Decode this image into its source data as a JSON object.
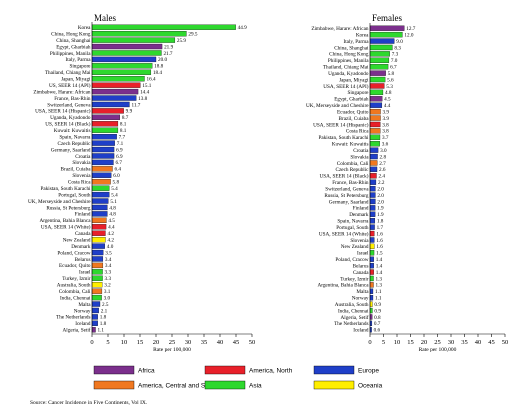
{
  "colors": {
    "Africa": "#7b2f8c",
    "America, North": "#e8202a",
    "Europe": "#1f3fc8",
    "America, Central and South": "#f07820",
    "Asia": "#2ed82e",
    "Oceania": "#ffee00"
  },
  "legend": [
    {
      "name": "Africa"
    },
    {
      "name": "America, North"
    },
    {
      "name": "Europe"
    },
    {
      "name": "America, Central and South"
    },
    {
      "name": "Asia"
    },
    {
      "name": "Oceania"
    }
  ],
  "source": "Source: Cancer Incidence in Five Continents, Vol IX.",
  "chart_data": [
    {
      "type": "bar",
      "title": "Males",
      "xlabel": "Rate per 100,000",
      "xlim": [
        0,
        50
      ],
      "xticks": [
        "0",
        "5",
        "10",
        "15",
        "20",
        "25",
        "30",
        "35",
        "40",
        "45",
        "50"
      ],
      "bars": [
        {
          "label": "Korea",
          "value": 44.9,
          "region": "Asia"
        },
        {
          "label": "China, Hong Kong",
          "value": 29.5,
          "region": "Asia"
        },
        {
          "label": "China, Shanghai",
          "value": 25.9,
          "region": "Asia"
        },
        {
          "label": "Egypt, Gharbiah",
          "value": 21.9,
          "region": "Africa"
        },
        {
          "label": "Philippines, Manila",
          "value": 21.7,
          "region": "Asia"
        },
        {
          "label": "Italy, Parma",
          "value": 20.0,
          "region": "Europe"
        },
        {
          "label": "Singapore",
          "value": 18.8,
          "region": "Asia"
        },
        {
          "label": "Thailand, Chiang Mai",
          "value": 18.4,
          "region": "Asia"
        },
        {
          "label": "Japan, Miyagi",
          "value": 16.4,
          "region": "Asia"
        },
        {
          "label": "US, SEER 14 (API)",
          "value": 15.1,
          "region": "America, North"
        },
        {
          "label": "Zimbabwe, Harare: African",
          "value": 14.4,
          "region": "Africa"
        },
        {
          "label": "France, Bas-Rhin",
          "value": 13.8,
          "region": "Europe"
        },
        {
          "label": "Switzerland, Geneva",
          "value": 11.7,
          "region": "Europe"
        },
        {
          "label": "USA, SEER 14 (Hispanic)",
          "value": 9.9,
          "region": "America, North"
        },
        {
          "label": "Uganda, Kyadondo",
          "value": 8.7,
          "region": "Africa"
        },
        {
          "label": "US, SEER 14 (Black)",
          "value": 8.1,
          "region": "America, North"
        },
        {
          "label": "Kuwait: Kuwaitis",
          "value": 8.1,
          "region": "Asia"
        },
        {
          "label": "Spain, Navarra",
          "value": 7.7,
          "region": "Europe"
        },
        {
          "label": "Czech Republic",
          "value": 7.1,
          "region": "Europe"
        },
        {
          "label": "Germany, Saarland",
          "value": 6.9,
          "region": "Europe"
        },
        {
          "label": "Croatia",
          "value": 6.9,
          "region": "Europe"
        },
        {
          "label": "Slovakia",
          "value": 6.7,
          "region": "Europe"
        },
        {
          "label": "Brazil, Cuiaba",
          "value": 6.4,
          "region": "America, Central and South"
        },
        {
          "label": "Slovenia",
          "value": 6.0,
          "region": "Europe"
        },
        {
          "label": "Costa Rica",
          "value": 5.8,
          "region": "America, Central and South"
        },
        {
          "label": "Pakistan, South Karachi",
          "value": 5.4,
          "region": "Asia"
        },
        {
          "label": "Portugal, South",
          "value": 5.4,
          "region": "Europe"
        },
        {
          "label": "UK, Merseyside and Cheshire",
          "value": 5.1,
          "region": "Europe"
        },
        {
          "label": "Russia, St Petersburg",
          "value": 4.8,
          "region": "Europe"
        },
        {
          "label": "Finland",
          "value": 4.8,
          "region": "Europe"
        },
        {
          "label": "Argentina, Bahia Blanca",
          "value": 4.5,
          "region": "America, Central and South"
        },
        {
          "label": "USA, SEER 14 (White)",
          "value": 4.4,
          "region": "America, North"
        },
        {
          "label": "Canada",
          "value": 4.2,
          "region": "America, North"
        },
        {
          "label": "New Zealand",
          "value": 4.2,
          "region": "Oceania"
        },
        {
          "label": "Denmark",
          "value": 4.0,
          "region": "Europe"
        },
        {
          "label": "Poland, Cracow",
          "value": 3.5,
          "region": "Europe"
        },
        {
          "label": "Belarus",
          "value": 3.4,
          "region": "Europe"
        },
        {
          "label": "Ecuador, Quito",
          "value": 3.4,
          "region": "America, Central and South"
        },
        {
          "label": "Israel",
          "value": 3.3,
          "region": "Asia"
        },
        {
          "label": "Turkey, Izmir",
          "value": 3.3,
          "region": "Asia"
        },
        {
          "label": "Australia, South",
          "value": 3.2,
          "region": "Oceania"
        },
        {
          "label": "Colombia, Cali",
          "value": 3.1,
          "region": "America, Central and South"
        },
        {
          "label": "India, Chennai",
          "value": 3.0,
          "region": "Asia"
        },
        {
          "label": "Malta",
          "value": 2.5,
          "region": "Europe"
        },
        {
          "label": "Norway",
          "value": 2.1,
          "region": "Europe"
        },
        {
          "label": "The Netherlands",
          "value": 1.8,
          "region": "Europe"
        },
        {
          "label": "Iceland",
          "value": 1.8,
          "region": "Europe"
        },
        {
          "label": "Algeria, Setif",
          "value": 1.1,
          "region": "Africa"
        }
      ]
    },
    {
      "type": "bar",
      "title": "Females",
      "xlabel": "Rate per 100,000",
      "xlim": [
        0,
        50
      ],
      "xticks": [
        "0",
        "5",
        "10",
        "15",
        "20",
        "25",
        "30",
        "35",
        "40",
        "45",
        "50"
      ],
      "bars": [
        {
          "label": "Zimbabwe, Harare: African",
          "value": 12.7,
          "region": "Africa"
        },
        {
          "label": "Korea",
          "value": 12.0,
          "region": "Asia"
        },
        {
          "label": "Italy, Parma",
          "value": 9.0,
          "region": "Europe"
        },
        {
          "label": "China, Shanghai",
          "value": 8.3,
          "region": "Asia"
        },
        {
          "label": "China, Hong Kong",
          "value": 7.3,
          "region": "Asia"
        },
        {
          "label": "Philippines, Manila",
          "value": 7.0,
          "region": "Asia"
        },
        {
          "label": "Thailand, Chiang Mai",
          "value": 6.7,
          "region": "Asia"
        },
        {
          "label": "Uganda, Kyadondo",
          "value": 5.8,
          "region": "Africa"
        },
        {
          "label": "Japan, Miyagi",
          "value": 5.6,
          "region": "Asia"
        },
        {
          "label": "USA, SEER 14 (API)",
          "value": 5.3,
          "region": "America, North"
        },
        {
          "label": "Singapore",
          "value": 4.8,
          "region": "Asia"
        },
        {
          "label": "Egypt, Gharbiah",
          "value": 4.5,
          "region": "Africa"
        },
        {
          "label": "UK, Merseyside and Cheshire",
          "value": 4.4,
          "region": "Europe"
        },
        {
          "label": "Ecuador, Quito",
          "value": 3.9,
          "region": "America, Central and South"
        },
        {
          "label": "Brazil, Cuiaba",
          "value": 3.9,
          "region": "America, Central and South"
        },
        {
          "label": "USA, SEER 14 (Hispanic)",
          "value": 3.8,
          "region": "America, North"
        },
        {
          "label": "Costa Rica",
          "value": 3.8,
          "region": "America, Central and South"
        },
        {
          "label": "Pakistan, South Karachi",
          "value": 3.7,
          "region": "Asia"
        },
        {
          "label": "Kuwait: Kuwaitis",
          "value": 3.6,
          "region": "Asia"
        },
        {
          "label": "Croatia",
          "value": 3.0,
          "region": "Europe"
        },
        {
          "label": "Slovakia",
          "value": 2.8,
          "region": "Europe"
        },
        {
          "label": "Colombia, Cali",
          "value": 2.7,
          "region": "America, Central and South"
        },
        {
          "label": "Czech Republic",
          "value": 2.6,
          "region": "Europe"
        },
        {
          "label": "USA, SEER 14 (Black)",
          "value": 2.4,
          "region": "America, North"
        },
        {
          "label": "France, Bas-Rhin",
          "value": 2.2,
          "region": "Europe"
        },
        {
          "label": "Switzerland, Geneva",
          "value": 2.0,
          "region": "Europe"
        },
        {
          "label": "Russia, St Petersburg",
          "value": 2.0,
          "region": "Europe"
        },
        {
          "label": "Germany, Saarland",
          "value": 2.0,
          "region": "Europe"
        },
        {
          "label": "Finland",
          "value": 1.9,
          "region": "Europe"
        },
        {
          "label": "Denmark",
          "value": 1.9,
          "region": "Europe"
        },
        {
          "label": "Spain, Navarra",
          "value": 1.8,
          "region": "Europe"
        },
        {
          "label": "Portugal, South",
          "value": 1.7,
          "region": "Europe"
        },
        {
          "label": "USA, SEER 14 (White)",
          "value": 1.6,
          "region": "America, North"
        },
        {
          "label": "Slovenia",
          "value": 1.6,
          "region": "Europe"
        },
        {
          "label": "New Zealand",
          "value": 1.6,
          "region": "Oceania"
        },
        {
          "label": "Israel",
          "value": 1.5,
          "region": "Asia"
        },
        {
          "label": "Poland, Cracow",
          "value": 1.4,
          "region": "Europe"
        },
        {
          "label": "Belarus",
          "value": 1.4,
          "region": "Europe"
        },
        {
          "label": "Canada",
          "value": 1.4,
          "region": "America, North"
        },
        {
          "label": "Turkey, Izmir",
          "value": 1.3,
          "region": "Asia"
        },
        {
          "label": "Argentina, Bahia Blanca",
          "value": 1.3,
          "region": "America, Central and South"
        },
        {
          "label": "Malta",
          "value": 1.1,
          "region": "Europe"
        },
        {
          "label": "Norway",
          "value": 1.1,
          "region": "Europe"
        },
        {
          "label": "Australia, South",
          "value": 0.9,
          "region": "Oceania"
        },
        {
          "label": "India, Chennai",
          "value": 0.9,
          "region": "Asia"
        },
        {
          "label": "Algeria, Setif",
          "value": 0.8,
          "region": "Africa"
        },
        {
          "label": "The Netherlands",
          "value": 0.7,
          "region": "Europe"
        },
        {
          "label": "Iceland",
          "value": 0.6,
          "region": "Europe"
        }
      ]
    }
  ]
}
